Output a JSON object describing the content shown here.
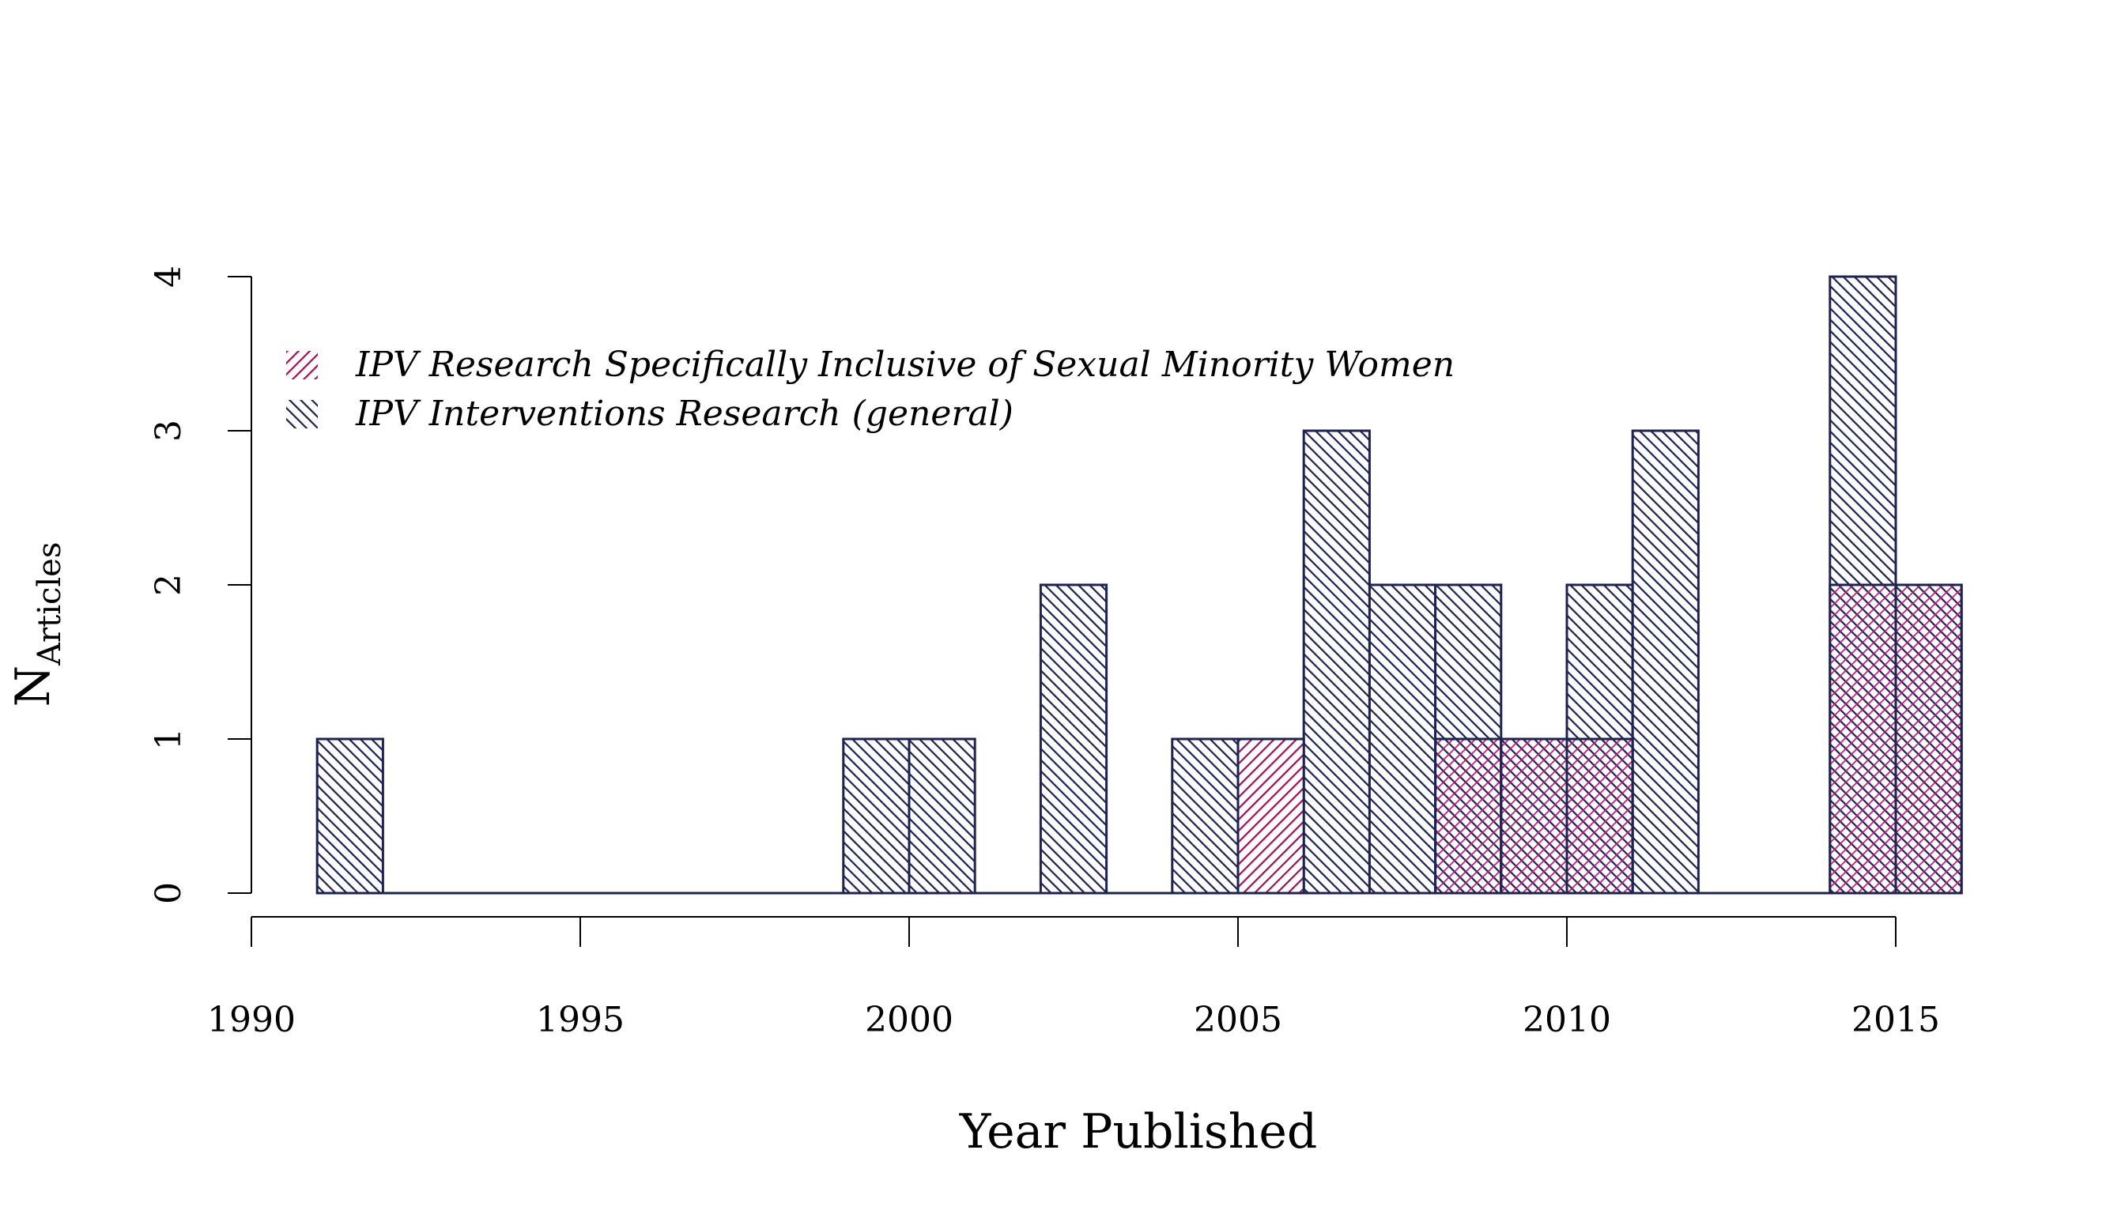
{
  "chart_data": {
    "type": "bar",
    "title": "",
    "xlabel": "Year Published",
    "ylabel_main": "N",
    "ylabel_sub": "Articles",
    "xlim": [
      1990,
      2016
    ],
    "ylim": [
      0,
      4
    ],
    "x_ticks": [
      "1990",
      "1995",
      "2000",
      "2005",
      "2010",
      "2015"
    ],
    "y_ticks": [
      "0",
      "1",
      "2",
      "3",
      "4"
    ],
    "bins": [
      1991,
      1992,
      1993,
      1994,
      1995,
      1996,
      1997,
      1998,
      1999,
      2000,
      2001,
      2002,
      2003,
      2004,
      2005,
      2006,
      2007,
      2008,
      2009,
      2010,
      2011,
      2012,
      2013,
      2014,
      2015
    ],
    "series": [
      {
        "name": "IPV Interventions Research (general)",
        "color": "#1f2350",
        "pattern": "diagonal-down",
        "values": [
          1,
          0,
          0,
          0,
          0,
          0,
          0,
          0,
          1,
          1,
          0,
          2,
          0,
          1,
          0,
          3,
          2,
          2,
          1,
          2,
          3,
          0,
          0,
          4,
          2
        ]
      },
      {
        "name": "IPV Research Specifically Inclusive of Sexual Minority Women",
        "color": "#9b1458",
        "pattern": "diagonal-up",
        "values": [
          0,
          0,
          0,
          0,
          0,
          0,
          0,
          0,
          0,
          0,
          0,
          0,
          0,
          0,
          1,
          0,
          0,
          1,
          1,
          1,
          0,
          0,
          0,
          2,
          2
        ]
      }
    ],
    "legend": {
      "placement": "top-left",
      "entries": [
        {
          "label": "IPV Research Specifically Inclusive of Sexual Minority Women",
          "color": "#9b1458",
          "pattern": "diagonal-up"
        },
        {
          "label": "IPV Interventions Research (general)",
          "color": "#1f2350",
          "pattern": "diagonal-down"
        }
      ]
    }
  }
}
